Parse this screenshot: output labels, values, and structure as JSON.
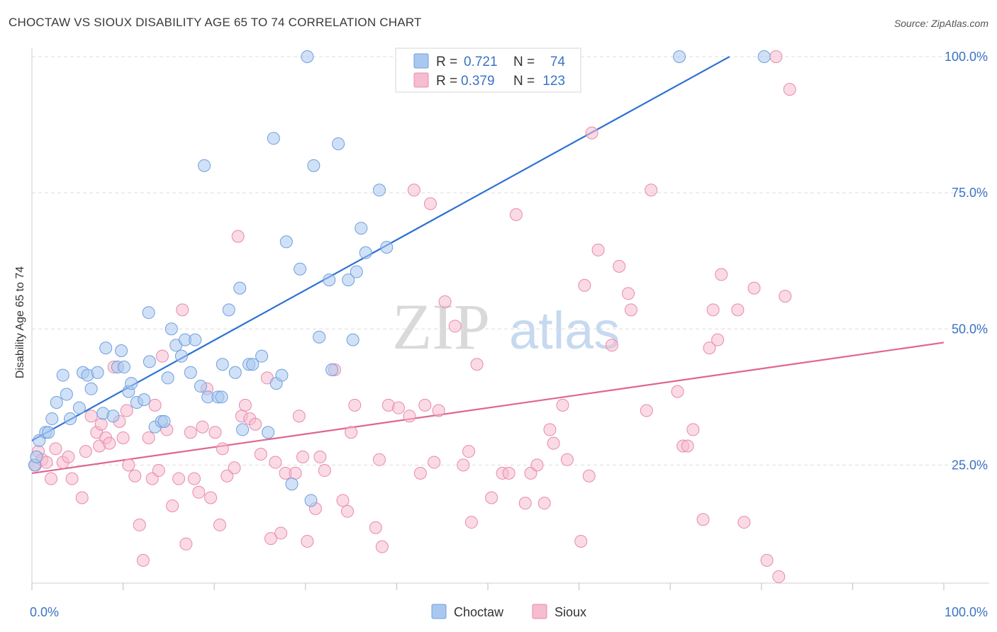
{
  "title": "CHOCTAW VS SIOUX DISABILITY AGE 65 TO 74 CORRELATION CHART",
  "source": "Source: ZipAtlas.com",
  "watermark": {
    "zip": "ZIP",
    "atlas": "atlas"
  },
  "colors": {
    "choctaw_fill": "#a9c8f0",
    "choctaw_stroke": "#6f9fdb",
    "choctaw_line": "#2e72d2",
    "sioux_fill": "#f6bcd0",
    "sioux_stroke": "#e88aab",
    "sioux_line": "#e06494",
    "axis_label": "#3b73c4",
    "grid": "#dcdcdc"
  },
  "legend": {
    "rows": [
      {
        "r_label": "R =",
        "r_value": "0.721",
        "n_label": "N =",
        "n_value": "74",
        "series": "Choctaw"
      },
      {
        "r_label": "R =",
        "r_value": "0.379",
        "n_label": "N =",
        "n_value": "123",
        "series": "Sioux"
      }
    ]
  },
  "bottom_legend": [
    "Choctaw",
    "Sioux"
  ],
  "chart_data": {
    "type": "scatter",
    "title": "CHOCTAW VS SIOUX DISABILITY AGE 65 TO 74 CORRELATION CHART",
    "xlabel": "",
    "ylabel": "Disability Age 65 to 74",
    "xlim": [
      0,
      100
    ],
    "ylim": [
      0,
      103
    ],
    "x_tick_labels": [
      "0.0%",
      "100.0%"
    ],
    "y_tick_labels": [
      "25.0%",
      "50.0%",
      "75.0%",
      "100.0%"
    ],
    "y_ticks": [
      25,
      50,
      75,
      100
    ],
    "grid": true,
    "legend_position": "top-center",
    "series": [
      {
        "name": "Choctaw",
        "r": 0.721,
        "n": 74,
        "trendline": {
          "x": [
            0,
            76.5
          ],
          "y": [
            29.5,
            100
          ]
        },
        "points": [
          [
            0.8,
            29.5
          ],
          [
            1.5,
            31
          ],
          [
            1.8,
            31
          ],
          [
            2.2,
            33.5
          ],
          [
            2.7,
            36.5
          ],
          [
            3.4,
            41.5
          ],
          [
            3.8,
            38
          ],
          [
            4.2,
            33.5
          ],
          [
            5.2,
            35.5
          ],
          [
            5.6,
            42
          ],
          [
            6.1,
            41.5
          ],
          [
            6.5,
            39
          ],
          [
            7.2,
            42
          ],
          [
            7.8,
            34.5
          ],
          [
            8.1,
            46.5
          ],
          [
            8.9,
            34
          ],
          [
            9.4,
            43
          ],
          [
            9.8,
            46
          ],
          [
            10.1,
            43
          ],
          [
            10.6,
            38.5
          ],
          [
            10.9,
            40
          ],
          [
            11.5,
            36.5
          ],
          [
            12.3,
            37
          ],
          [
            12.8,
            53
          ],
          [
            12.9,
            44
          ],
          [
            13.5,
            32
          ],
          [
            14.2,
            33
          ],
          [
            14.5,
            33
          ],
          [
            14.9,
            41
          ],
          [
            15.3,
            50
          ],
          [
            15.8,
            47
          ],
          [
            16.4,
            45
          ],
          [
            16.8,
            48
          ],
          [
            17.4,
            42
          ],
          [
            17.9,
            48
          ],
          [
            18.5,
            39.5
          ],
          [
            18.9,
            80
          ],
          [
            19.3,
            37.5
          ],
          [
            20.4,
            37.5
          ],
          [
            20.8,
            37.5
          ],
          [
            20.9,
            43.5
          ],
          [
            21.6,
            53.5
          ],
          [
            22.3,
            42
          ],
          [
            22.8,
            57.5
          ],
          [
            23.1,
            31.5
          ],
          [
            23.8,
            43.5
          ],
          [
            24.2,
            43.5
          ],
          [
            25.2,
            45
          ],
          [
            25.9,
            31
          ],
          [
            26.5,
            85
          ],
          [
            26.8,
            40
          ],
          [
            27.4,
            41.5
          ],
          [
            27.9,
            66
          ],
          [
            28.5,
            21.5
          ],
          [
            29.4,
            61
          ],
          [
            30.2,
            100
          ],
          [
            30.6,
            18.5
          ],
          [
            30.9,
            80
          ],
          [
            31.5,
            48.5
          ],
          [
            32.6,
            59
          ],
          [
            32.9,
            42.5
          ],
          [
            33.6,
            84
          ],
          [
            34.7,
            59
          ],
          [
            35.2,
            48
          ],
          [
            35.6,
            60.5
          ],
          [
            36.1,
            68.5
          ],
          [
            36.6,
            64
          ],
          [
            38.1,
            75.5
          ],
          [
            38.9,
            65
          ],
          [
            43.2,
            100
          ],
          [
            71,
            100
          ],
          [
            80.3,
            100
          ],
          [
            0.3,
            25
          ],
          [
            0.5,
            26.5
          ]
        ]
      },
      {
        "name": "Sioux",
        "r": 0.379,
        "n": 123,
        "trendline": {
          "x": [
            0,
            100
          ],
          "y": [
            23.5,
            47.5
          ]
        },
        "points": [
          [
            0.4,
            25
          ],
          [
            0.7,
            27.5
          ],
          [
            1.1,
            26
          ],
          [
            1.6,
            25.5
          ],
          [
            2.1,
            22.5
          ],
          [
            2.6,
            28
          ],
          [
            3.4,
            25.5
          ],
          [
            4,
            26.5
          ],
          [
            4.4,
            22.5
          ],
          [
            5.5,
            19
          ],
          [
            5.9,
            27.5
          ],
          [
            6.5,
            34
          ],
          [
            7.1,
            31
          ],
          [
            7.4,
            28.5
          ],
          [
            7.6,
            32.5
          ],
          [
            8.1,
            30
          ],
          [
            8.5,
            29
          ],
          [
            9,
            43
          ],
          [
            9.6,
            33
          ],
          [
            10,
            30
          ],
          [
            10.4,
            35
          ],
          [
            10.6,
            25
          ],
          [
            11.3,
            23
          ],
          [
            11.8,
            14
          ],
          [
            12.2,
            7.5
          ],
          [
            12.8,
            30
          ],
          [
            13.2,
            22.5
          ],
          [
            13.5,
            36
          ],
          [
            13.9,
            24
          ],
          [
            14.3,
            45
          ],
          [
            14.8,
            31.5
          ],
          [
            15.4,
            17.5
          ],
          [
            16.1,
            22.5
          ],
          [
            16.5,
            53.5
          ],
          [
            16.9,
            10.5
          ],
          [
            17.4,
            31
          ],
          [
            17.8,
            22.5
          ],
          [
            18.3,
            20
          ],
          [
            18.7,
            32
          ],
          [
            19.2,
            39
          ],
          [
            19.6,
            19
          ],
          [
            20.1,
            31
          ],
          [
            20.6,
            14
          ],
          [
            20.9,
            28
          ],
          [
            21.4,
            23
          ],
          [
            22.2,
            24.5
          ],
          [
            22.6,
            67
          ],
          [
            23,
            34
          ],
          [
            23.4,
            36
          ],
          [
            23.9,
            33.5
          ],
          [
            24.5,
            32.5
          ],
          [
            25.1,
            27
          ],
          [
            25.8,
            41
          ],
          [
            26.2,
            11.5
          ],
          [
            26.7,
            25.5
          ],
          [
            27.3,
            12.5
          ],
          [
            27.8,
            23.5
          ],
          [
            28.9,
            23.5
          ],
          [
            29.3,
            34
          ],
          [
            29.7,
            26.5
          ],
          [
            30.2,
            11
          ],
          [
            31.1,
            17
          ],
          [
            31.6,
            26.5
          ],
          [
            32.1,
            24
          ],
          [
            33.2,
            42.5
          ],
          [
            34.1,
            18.5
          ],
          [
            34.6,
            16.5
          ],
          [
            35,
            31
          ],
          [
            35.4,
            36
          ],
          [
            37.7,
            13.5
          ],
          [
            38.1,
            26
          ],
          [
            38.4,
            10
          ],
          [
            39.1,
            36
          ],
          [
            40.2,
            35.5
          ],
          [
            41.4,
            34
          ],
          [
            41.9,
            75.5
          ],
          [
            42.6,
            23.5
          ],
          [
            43.1,
            36
          ],
          [
            43.7,
            73
          ],
          [
            44.1,
            25.5
          ],
          [
            44.6,
            35
          ],
          [
            45.3,
            55
          ],
          [
            46.4,
            50.5
          ],
          [
            47.3,
            25
          ],
          [
            47.9,
            27.5
          ],
          [
            48.2,
            14.5
          ],
          [
            48.8,
            43.5
          ],
          [
            50.4,
            19
          ],
          [
            51.6,
            23.5
          ],
          [
            52.3,
            23.5
          ],
          [
            53.1,
            71
          ],
          [
            54.1,
            18
          ],
          [
            54.7,
            23.5
          ],
          [
            55.4,
            25
          ],
          [
            56.2,
            18
          ],
          [
            56.8,
            31.5
          ],
          [
            57.2,
            29
          ],
          [
            58.2,
            36
          ],
          [
            58.7,
            26
          ],
          [
            60.2,
            11
          ],
          [
            60.6,
            58
          ],
          [
            61.1,
            23
          ],
          [
            61.4,
            86
          ],
          [
            62.1,
            64.5
          ],
          [
            63.6,
            47
          ],
          [
            64.4,
            61.5
          ],
          [
            65.4,
            56.5
          ],
          [
            65.7,
            53.5
          ],
          [
            67.4,
            35
          ],
          [
            67.9,
            75.5
          ],
          [
            70.8,
            38.5
          ],
          [
            71.4,
            28.5
          ],
          [
            71.9,
            28.5
          ],
          [
            72.5,
            31.5
          ],
          [
            73.6,
            15
          ],
          [
            74.3,
            46.5
          ],
          [
            74.7,
            53.5
          ],
          [
            75.2,
            48
          ],
          [
            75.6,
            60
          ],
          [
            77.4,
            53.5
          ],
          [
            78.1,
            14.5
          ],
          [
            79.2,
            57.5
          ],
          [
            80.6,
            7.5
          ],
          [
            81.6,
            100
          ],
          [
            81.9,
            4.5
          ],
          [
            82.6,
            56
          ],
          [
            83.1,
            94
          ]
        ]
      }
    ]
  }
}
